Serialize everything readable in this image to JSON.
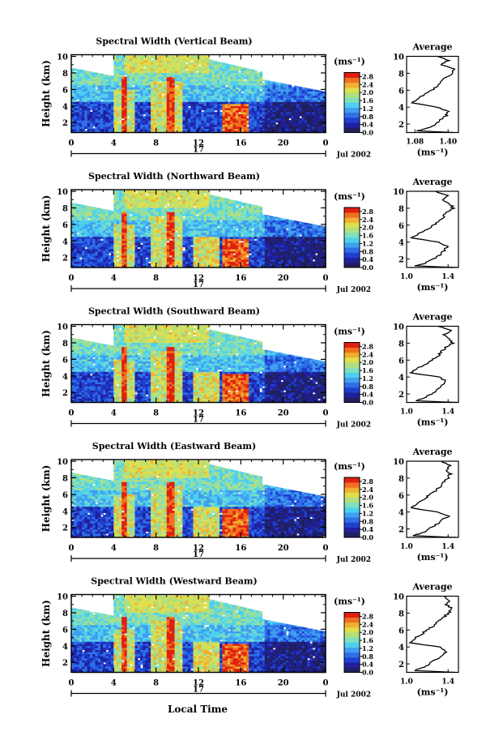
{
  "figure": {
    "xlabel": "Local Time",
    "ylabel": "Height (km)",
    "colorbar_unit": "(ms⁻¹)",
    "colorbar_ticks": [
      "0.0",
      "0.4",
      "0.8",
      "1.2",
      "1.6",
      "2.0",
      "2.4",
      "2.8"
    ],
    "colorbar_range": [
      0.0,
      3.0
    ],
    "colorbar_colors": [
      "#202060",
      "#2020a0",
      "#1f3fcf",
      "#2f6fe8",
      "#3f9ff0",
      "#4fcfef",
      "#7fdfbf",
      "#afdf7f",
      "#dfdf4f",
      "#f0b030",
      "#f07020",
      "#e02010"
    ],
    "x_ticks": [
      "0",
      "4",
      "8",
      "12",
      "16",
      "20",
      "0"
    ],
    "x_range": [
      0,
      24
    ],
    "y_ticks": [
      "2",
      "4",
      "6",
      "8",
      "10"
    ],
    "y_range": [
      0.8,
      10.2
    ],
    "date_day": "17",
    "date_month": "Jul 2002",
    "avg_title": "Average",
    "avg_unit": "(ms⁻¹)"
  },
  "chart_data": [
    {
      "type": "heatmap",
      "title": "Spectral Width (Vertical Beam)",
      "avg_xticks": [
        "1.08",
        "1.40"
      ],
      "avg_xlim": [
        1.0,
        1.5
      ],
      "avg_profile": {
        "height": [
          1.0,
          1.2,
          1.5,
          2.0,
          2.5,
          3.0,
          3.5,
          4.0,
          4.5,
          5.0,
          5.5,
          6.0,
          6.5,
          7.0,
          7.5,
          8.0,
          8.5,
          9.0,
          9.5,
          10.0
        ],
        "value": [
          1.45,
          1.1,
          1.2,
          1.28,
          1.33,
          1.38,
          1.4,
          1.3,
          1.06,
          1.1,
          1.18,
          1.24,
          1.3,
          1.34,
          1.38,
          1.44,
          1.45,
          1.34,
          1.4,
          1.3
        ]
      }
    },
    {
      "type": "heatmap",
      "title": "Spectral Width (Northward Beam)",
      "avg_xticks": [
        "1.0",
        "1.4"
      ],
      "avg_xlim": [
        1.0,
        1.5
      ],
      "avg_profile": {
        "height": [
          1.0,
          1.2,
          1.5,
          2.0,
          2.5,
          3.0,
          3.5,
          4.0,
          4.5,
          5.0,
          5.5,
          6.0,
          6.5,
          7.0,
          7.5,
          8.0,
          8.5,
          9.0,
          9.5,
          10.0
        ],
        "value": [
          1.48,
          1.08,
          1.18,
          1.26,
          1.32,
          1.36,
          1.4,
          1.3,
          1.05,
          1.12,
          1.2,
          1.26,
          1.32,
          1.36,
          1.38,
          1.45,
          1.42,
          1.34,
          1.4,
          1.28
        ]
      }
    },
    {
      "type": "heatmap",
      "title": "Spectral Width (Southward Beam)",
      "avg_xticks": [
        "1.0",
        "1.4"
      ],
      "avg_xlim": [
        1.0,
        1.5
      ],
      "avg_profile": {
        "height": [
          1.0,
          1.2,
          1.5,
          2.0,
          2.5,
          3.0,
          3.5,
          4.0,
          4.5,
          5.0,
          5.5,
          6.0,
          6.5,
          7.0,
          7.5,
          8.0,
          8.5,
          9.0,
          9.5,
          10.0
        ],
        "value": [
          1.48,
          1.08,
          1.16,
          1.24,
          1.3,
          1.34,
          1.38,
          1.32,
          1.05,
          1.1,
          1.18,
          1.24,
          1.3,
          1.34,
          1.38,
          1.44,
          1.42,
          1.36,
          1.44,
          1.3
        ]
      }
    },
    {
      "type": "heatmap",
      "title": "Spectral Width (Eastward Beam)",
      "avg_xticks": [
        "1.0",
        "1.4"
      ],
      "avg_xlim": [
        1.0,
        1.5
      ],
      "avg_profile": {
        "height": [
          1.0,
          1.2,
          1.5,
          2.0,
          2.5,
          3.0,
          3.5,
          4.0,
          4.5,
          5.0,
          5.5,
          6.0,
          6.5,
          7.0,
          7.5,
          8.0,
          8.5,
          9.0,
          9.5,
          10.0
        ],
        "value": [
          1.48,
          1.06,
          1.14,
          1.22,
          1.28,
          1.34,
          1.4,
          1.3,
          1.04,
          1.1,
          1.16,
          1.22,
          1.28,
          1.32,
          1.36,
          1.4,
          1.42,
          1.38,
          1.42,
          1.34
        ]
      }
    },
    {
      "type": "heatmap",
      "title": "Spectral Width (Westward Beam)",
      "avg_xticks": [
        "1.0",
        "1.4"
      ],
      "avg_xlim": [
        1.0,
        1.5
      ],
      "avg_profile": {
        "height": [
          1.0,
          1.2,
          1.5,
          2.0,
          2.5,
          3.0,
          3.5,
          4.0,
          4.5,
          5.0,
          5.5,
          6.0,
          6.5,
          7.0,
          7.5,
          8.0,
          8.5,
          9.0,
          9.5,
          10.0
        ],
        "value": [
          1.48,
          1.08,
          1.14,
          1.22,
          1.28,
          1.34,
          1.38,
          1.32,
          1.04,
          1.08,
          1.14,
          1.2,
          1.26,
          1.3,
          1.36,
          1.4,
          1.44,
          1.38,
          1.42,
          1.36
        ]
      }
    }
  ]
}
